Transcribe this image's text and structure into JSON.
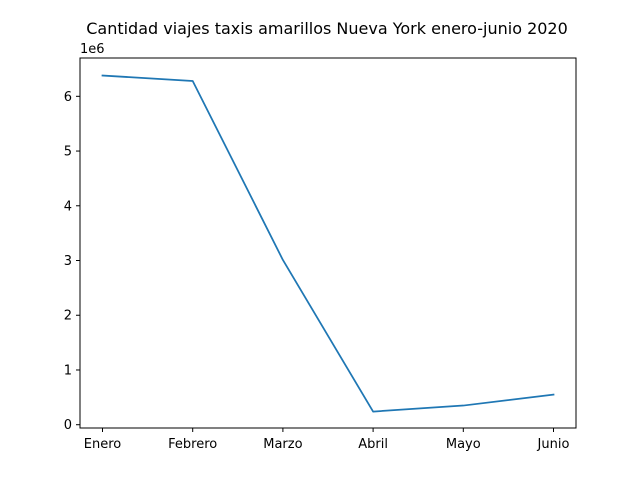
{
  "chart_data": {
    "type": "line",
    "title": "Cantidad viajes taxis amarillos Nueva York enero-junio 2020",
    "xlabel": "",
    "ylabel": "",
    "y_offset_label": "1e6",
    "categories": [
      "Enero",
      "Febrero",
      "Marzo",
      "Abril",
      "Mayo",
      "Junio"
    ],
    "series": [
      {
        "values": [
          6380000,
          6280000,
          3010000,
          240000,
          350000,
          550000
        ],
        "color": "#1f77b4"
      }
    ],
    "ylim": [
      -60000,
      6700000
    ],
    "yticks": [
      0,
      1000000,
      2000000,
      3000000,
      4000000,
      5000000,
      6000000
    ],
    "ytick_labels": [
      "0",
      "1",
      "2",
      "3",
      "4",
      "5",
      "6"
    ],
    "grid": false,
    "legend": "none"
  }
}
